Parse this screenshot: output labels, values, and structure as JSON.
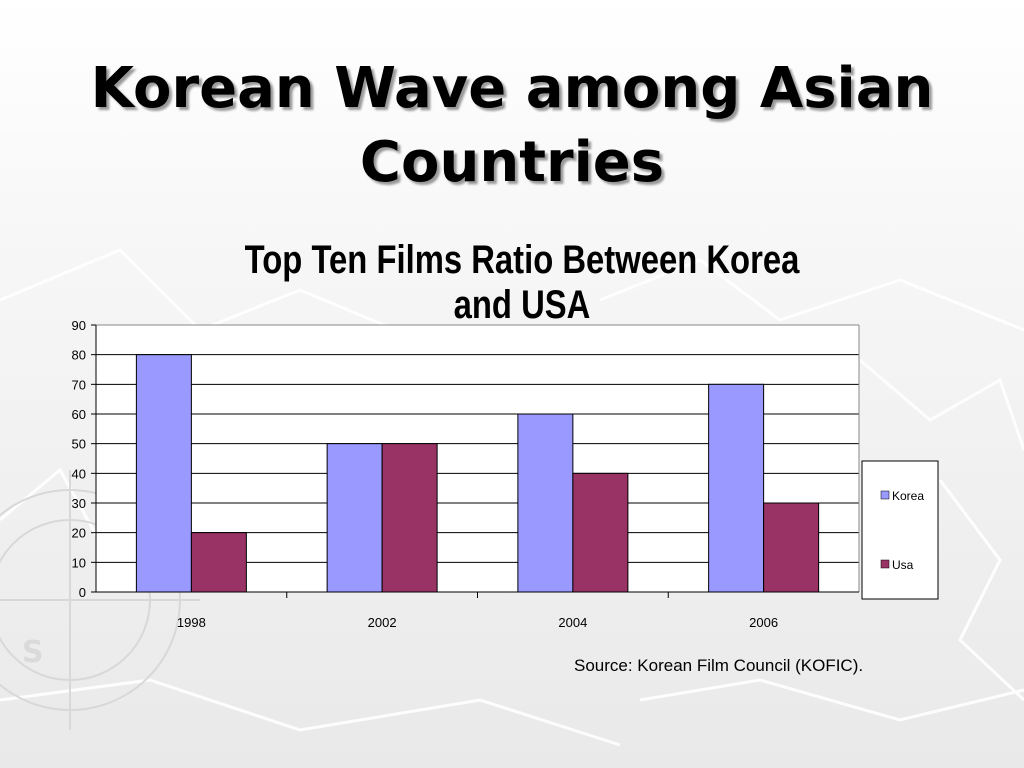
{
  "slide": {
    "title": "Korean Wave among Asian Countries",
    "source": "Source: Korean Film Council (KOFIC)."
  },
  "colors": {
    "korea": "#9999ff",
    "usa": "#993366",
    "gridline": "#000000",
    "plot_background": "#ffffff"
  },
  "chart_data": {
    "type": "bar",
    "title": "Top Ten Films Ratio Between Korea and USA",
    "xlabel": "",
    "ylabel": "",
    "categories": [
      "1998",
      "2002",
      "2004",
      "2006"
    ],
    "series": [
      {
        "name": "Korea",
        "values": [
          80,
          50,
          60,
          70
        ]
      },
      {
        "name": "Usa",
        "values": [
          20,
          50,
          40,
          30
        ]
      }
    ],
    "ylim": [
      0,
      90
    ],
    "yticks": [
      0,
      10,
      20,
      30,
      40,
      50,
      60,
      70,
      80,
      90
    ],
    "grid": true,
    "legend": "right"
  }
}
